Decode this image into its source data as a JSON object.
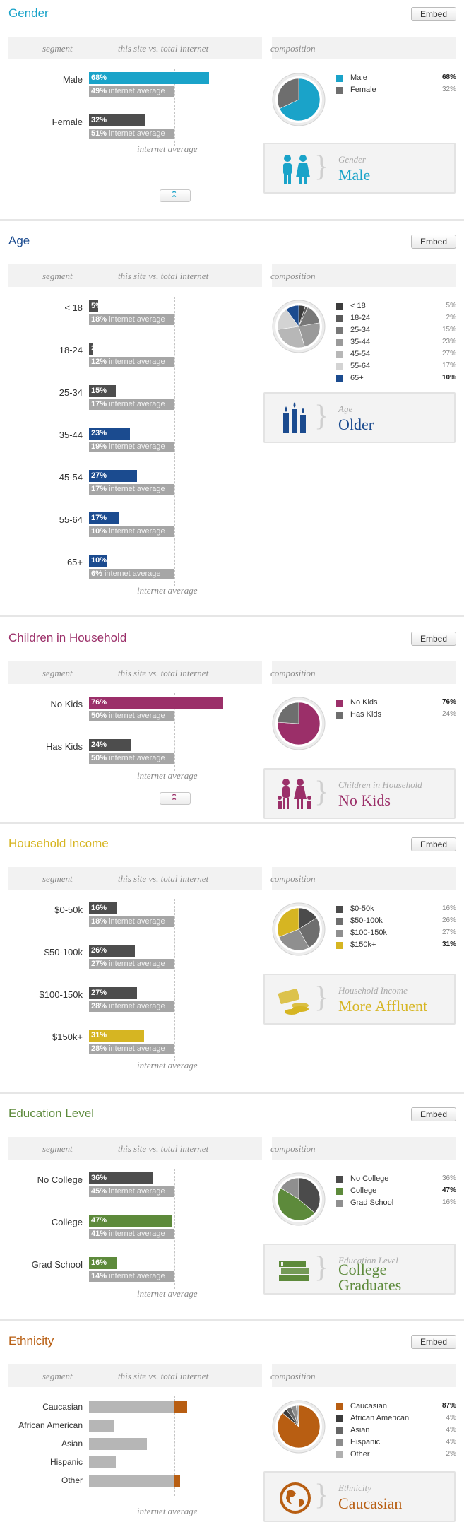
{
  "header_labels": {
    "segment": "segment",
    "comparison": "this site vs. total internet",
    "composition": "composition",
    "internet_average": "internet average",
    "internet_average_suffix": "internet average",
    "embed": "Embed"
  },
  "colors": {
    "gender": "#1aa3c9",
    "age": "#1b4b8f",
    "children": "#9b2f69",
    "income": "#d6b522",
    "education": "#5d8a3b",
    "ethnicity": "#b85e12",
    "dark": "#4d4d4d",
    "avg": "#a6a6a6"
  },
  "sections": [
    {
      "key": "gender",
      "title": "Gender",
      "rows": [
        {
          "label": "Male",
          "site": "68%",
          "site_value": 68,
          "avg": "49%",
          "avg_value": 49,
          "highlight": true
        },
        {
          "label": "Female",
          "site": "32%",
          "site_value": 32,
          "avg": "51%",
          "avg_value": 51,
          "highlight": false
        }
      ],
      "legend": [
        {
          "name": "Male",
          "value": "68%",
          "highlight": true
        },
        {
          "name": "Female",
          "value": "32%",
          "highlight": false
        }
      ],
      "card": {
        "subtitle": "Gender",
        "main": "Male",
        "icon": "people-icon"
      }
    },
    {
      "key": "age",
      "title": "Age",
      "rows": [
        {
          "label": "< 18",
          "site": "5%",
          "site_value": 5,
          "avg": "18%",
          "avg_value": 18,
          "highlight": false
        },
        {
          "label": "18-24",
          "site": "2%",
          "site_value": 2,
          "avg": "12%",
          "avg_value": 12,
          "highlight": false
        },
        {
          "label": "25-34",
          "site": "15%",
          "site_value": 15,
          "avg": "17%",
          "avg_value": 17,
          "highlight": false
        },
        {
          "label": "35-44",
          "site": "23%",
          "site_value": 23,
          "avg": "19%",
          "avg_value": 19,
          "highlight": true
        },
        {
          "label": "45-54",
          "site": "27%",
          "site_value": 27,
          "avg": "17%",
          "avg_value": 17,
          "highlight": true
        },
        {
          "label": "55-64",
          "site": "17%",
          "site_value": 17,
          "avg": "10%",
          "avg_value": 10,
          "highlight": true
        },
        {
          "label": "65+",
          "site": "10%",
          "site_value": 10,
          "avg": "6%",
          "avg_value": 6,
          "highlight": true
        }
      ],
      "legend": [
        {
          "name": "< 18",
          "value": "5%",
          "highlight": false
        },
        {
          "name": "18-24",
          "value": "2%",
          "highlight": false
        },
        {
          "name": "25-34",
          "value": "15%",
          "highlight": false
        },
        {
          "name": "35-44",
          "value": "23%",
          "highlight": false
        },
        {
          "name": "45-54",
          "value": "27%",
          "highlight": false
        },
        {
          "name": "55-64",
          "value": "17%",
          "highlight": false
        },
        {
          "name": "65+",
          "value": "10%",
          "highlight": true
        }
      ],
      "card": {
        "subtitle": "Age",
        "main": "Older",
        "icon": "candles-icon"
      }
    },
    {
      "key": "children",
      "title": "Children in Household",
      "rows": [
        {
          "label": "No Kids",
          "site": "76%",
          "site_value": 76,
          "avg": "50%",
          "avg_value": 50,
          "highlight": true
        },
        {
          "label": "Has Kids",
          "site": "24%",
          "site_value": 24,
          "avg": "50%",
          "avg_value": 50,
          "highlight": false
        }
      ],
      "legend": [
        {
          "name": "No Kids",
          "value": "76%",
          "highlight": true
        },
        {
          "name": "Has Kids",
          "value": "24%",
          "highlight": false
        }
      ],
      "card": {
        "subtitle": "Children in Household",
        "main": "No Kids",
        "icon": "family-icon"
      }
    },
    {
      "key": "income",
      "title": "Household Income",
      "rows": [
        {
          "label": "$0-50k",
          "site": "16%",
          "site_value": 16,
          "avg": "18%",
          "avg_value": 18,
          "highlight": false
        },
        {
          "label": "$50-100k",
          "site": "26%",
          "site_value": 26,
          "avg": "27%",
          "avg_value": 27,
          "highlight": false
        },
        {
          "label": "$100-150k",
          "site": "27%",
          "site_value": 27,
          "avg": "28%",
          "avg_value": 28,
          "highlight": false
        },
        {
          "label": "$150k+",
          "site": "31%",
          "site_value": 31,
          "avg": "28%",
          "avg_value": 28,
          "highlight": true
        }
      ],
      "legend": [
        {
          "name": "$0-50k",
          "value": "16%",
          "highlight": false
        },
        {
          "name": "$50-100k",
          "value": "26%",
          "highlight": false
        },
        {
          "name": "$100-150k",
          "value": "27%",
          "highlight": false
        },
        {
          "name": "$150k+",
          "value": "31%",
          "highlight": true
        }
      ],
      "card": {
        "subtitle": "Household Income",
        "main": "More Affluent",
        "icon": "money-icon"
      }
    },
    {
      "key": "education",
      "title": "Education Level",
      "rows": [
        {
          "label": "No College",
          "site": "36%",
          "site_value": 36,
          "avg": "45%",
          "avg_value": 45,
          "highlight": false
        },
        {
          "label": "College",
          "site": "47%",
          "site_value": 47,
          "avg": "41%",
          "avg_value": 41,
          "highlight": true
        },
        {
          "label": "Grad School",
          "site": "16%",
          "site_value": 16,
          "avg": "14%",
          "avg_value": 14,
          "highlight": true
        }
      ],
      "legend": [
        {
          "name": "No College",
          "value": "36%",
          "highlight": false
        },
        {
          "name": "College",
          "value": "47%",
          "highlight": true
        },
        {
          "name": "Grad School",
          "value": "16%",
          "highlight": false
        }
      ],
      "card": {
        "subtitle": "Education Level",
        "main": "College Graduates",
        "icon": "books-icon"
      }
    },
    {
      "key": "ethnicity",
      "title": "Ethnicity",
      "rows": [
        {
          "label": "Caucasian",
          "index": 1.15,
          "highlight": true
        },
        {
          "label": "African American",
          "index": 0.29,
          "highlight": false
        },
        {
          "label": "Asian",
          "index": 0.68,
          "highlight": false
        },
        {
          "label": "Hispanic",
          "index": 0.31,
          "highlight": false
        },
        {
          "label": "Other",
          "index": 1.07,
          "highlight": true
        }
      ],
      "legend": [
        {
          "name": "Caucasian",
          "value": "87%",
          "highlight": true
        },
        {
          "name": "African American",
          "value": "4%",
          "highlight": false
        },
        {
          "name": "Asian",
          "value": "4%",
          "highlight": false
        },
        {
          "name": "Hispanic",
          "value": "4%",
          "highlight": false
        },
        {
          "name": "Other",
          "value": "2%",
          "highlight": false
        }
      ],
      "card": {
        "subtitle": "Ethnicity",
        "main": "Caucasian",
        "icon": "globe-icon"
      }
    }
  ]
}
